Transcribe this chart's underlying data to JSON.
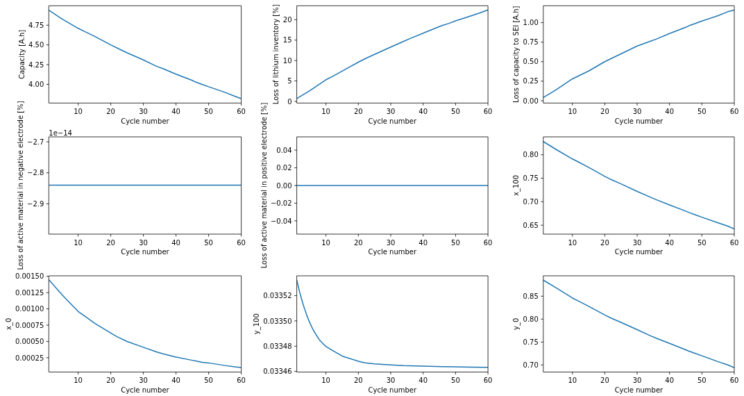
{
  "chart_data": [
    {
      "type": "line",
      "xlabel": "Cycle number",
      "ylabel": "Capacity [A.h]",
      "color": "#1f77b4",
      "x": [
        1,
        5,
        10,
        12,
        15,
        20,
        22,
        25,
        30,
        34,
        36,
        40,
        45,
        46,
        48,
        50,
        55,
        58,
        60
      ],
      "values": [
        4.94,
        4.83,
        4.71,
        4.67,
        4.61,
        4.5,
        4.46,
        4.4,
        4.31,
        4.23,
        4.2,
        4.13,
        4.05,
        4.03,
        4.0,
        3.97,
        3.9,
        3.85,
        3.82
      ],
      "xlim": [
        1,
        60
      ],
      "xticks": [
        10,
        20,
        30,
        40,
        50,
        60
      ],
      "ylim": [
        3.764,
        4.996
      ],
      "yticks": [
        {
          "value": 4.0,
          "label": "4.00"
        },
        {
          "value": 4.25,
          "label": "4.25"
        },
        {
          "value": 4.5,
          "label": "4.50"
        },
        {
          "value": 4.75,
          "label": "4.75"
        }
      ]
    },
    {
      "type": "line",
      "xlabel": "Cycle number",
      "ylabel": "Loss of lithium inventory [%]",
      "color": "#1f77b4",
      "x": [
        1,
        5,
        10,
        12,
        15,
        20,
        22,
        25,
        30,
        34,
        36,
        40,
        45,
        46,
        48,
        50,
        55,
        58,
        60
      ],
      "values": [
        0.7,
        2.6,
        5.3,
        6.1,
        7.4,
        9.6,
        10.4,
        11.5,
        13.3,
        14.7,
        15.4,
        16.7,
        18.3,
        18.6,
        19.1,
        19.7,
        21.0,
        21.8,
        22.4
      ],
      "xlim": [
        1,
        60
      ],
      "xticks": [
        10,
        20,
        30,
        40,
        50,
        60
      ],
      "ylim": [
        -0.4,
        23.4
      ],
      "yticks": [
        0,
        5,
        10,
        15,
        20
      ]
    },
    {
      "type": "line",
      "xlabel": "Cycle number",
      "ylabel": "Loss of capacity to SEI [A.h]",
      "color": "#1f77b4",
      "x": [
        1,
        5,
        10,
        12,
        15,
        20,
        22,
        25,
        30,
        34,
        36,
        40,
        45,
        46,
        48,
        50,
        55,
        58,
        60
      ],
      "values": [
        0.04,
        0.14,
        0.28,
        0.32,
        0.38,
        0.5,
        0.54,
        0.6,
        0.7,
        0.76,
        0.79,
        0.86,
        0.94,
        0.96,
        0.99,
        1.02,
        1.09,
        1.14,
        1.16
      ],
      "xlim": [
        1,
        60
      ],
      "xticks": [
        10,
        20,
        30,
        40,
        50,
        60
      ],
      "ylim": [
        -0.03,
        1.216
      ],
      "yticks": [
        {
          "value": 0,
          "label": "0.00"
        },
        {
          "value": 0.25,
          "label": "0.25"
        },
        {
          "value": 0.5,
          "label": "0.50"
        },
        {
          "value": 0.75,
          "label": "0.75"
        },
        {
          "value": 1.0,
          "label": "1.00"
        }
      ]
    },
    {
      "type": "line",
      "xlabel": "Cycle number",
      "ylabel": "Loss of active material in negative electrode [%]",
      "color": "#1f77b4",
      "x": [
        1,
        60
      ],
      "values": [
        -2.84,
        -2.84
      ],
      "xlim": [
        1,
        60
      ],
      "xticks": [
        10,
        20,
        30,
        40,
        50,
        60
      ],
      "ylim": [
        -2.998,
        -2.684
      ],
      "yticks": [
        {
          "value": -2.9,
          "label": "−2.9"
        },
        {
          "value": -2.8,
          "label": "−2.8"
        },
        {
          "value": -2.7,
          "label": "−2.7"
        }
      ],
      "annotations": [
        "1e−14"
      ]
    },
    {
      "type": "line",
      "xlabel": "Cycle number",
      "ylabel": "Loss of active material in positive electrode [%]",
      "color": "#1f77b4",
      "x": [
        1,
        60
      ],
      "values": [
        0,
        0
      ],
      "xlim": [
        1,
        60
      ],
      "xticks": [
        10,
        20,
        30,
        40,
        50,
        60
      ],
      "ylim": [
        -0.055,
        0.055
      ],
      "yticks": [
        {
          "value": -0.04,
          "label": "−0.04"
        },
        {
          "value": -0.02,
          "label": "−0.02"
        },
        {
          "value": 0,
          "label": "0.00"
        },
        {
          "value": 0.02,
          "label": "0.02"
        },
        {
          "value": 0.04,
          "label": "0.04"
        }
      ]
    },
    {
      "type": "line",
      "xlabel": "Cycle number",
      "ylabel": "x_100",
      "color": "#1f77b4",
      "x": [
        1,
        5,
        10,
        12,
        15,
        20,
        22,
        25,
        30,
        34,
        36,
        40,
        45,
        46,
        48,
        50,
        55,
        58,
        60
      ],
      "values": [
        0.828,
        0.811,
        0.791,
        0.784,
        0.773,
        0.754,
        0.747,
        0.738,
        0.722,
        0.71,
        0.704,
        0.693,
        0.68,
        0.677,
        0.672,
        0.667,
        0.655,
        0.648,
        0.642
      ],
      "xlim": [
        1,
        60
      ],
      "xticks": [
        10,
        20,
        30,
        40,
        50,
        60
      ],
      "ylim": [
        0.631,
        0.838
      ],
      "yticks": [
        {
          "value": 0.65,
          "label": "0.65"
        },
        {
          "value": 0.7,
          "label": "0.70"
        },
        {
          "value": 0.75,
          "label": "0.75"
        },
        {
          "value": 0.8,
          "label": "0.80"
        }
      ]
    },
    {
      "type": "line",
      "xlabel": "Cycle number",
      "ylabel": "x_0",
      "color": "#1f77b4",
      "x": [
        1,
        5,
        10,
        12,
        15,
        20,
        22,
        25,
        30,
        34,
        36,
        40,
        45,
        46,
        48,
        50,
        55,
        58,
        60
      ],
      "values": [
        0.00145,
        0.00122,
        0.00096,
        0.00089,
        0.00078,
        0.00063,
        0.00057,
        0.0005,
        0.00041,
        0.00034,
        0.00031,
        0.00026,
        0.00021,
        0.0002,
        0.00018,
        0.00017,
        0.00013,
        0.00011,
        0.0001
      ],
      "xlim": [
        1,
        60
      ],
      "xticks": [
        10,
        20,
        30,
        40,
        50,
        60
      ],
      "ylim": [
        3e-05,
        0.001508
      ],
      "yticks": [
        {
          "value": 0.00025,
          "label": "0.00025"
        },
        {
          "value": 0.0005,
          "label": "0.00050"
        },
        {
          "value": 0.00075,
          "label": "0.00075"
        },
        {
          "value": 0.001,
          "label": "0.00100"
        },
        {
          "value": 0.00125,
          "label": "0.00125"
        },
        {
          "value": 0.0015,
          "label": "0.00150"
        }
      ]
    },
    {
      "type": "line",
      "xlabel": "Cycle number",
      "ylabel": "y_100",
      "color": "#1f77b4",
      "x": [
        1,
        2,
        3,
        4,
        5,
        6,
        7,
        8,
        9,
        10,
        12,
        15,
        20,
        22,
        25,
        30,
        34,
        40,
        46,
        50,
        55,
        60
      ],
      "values": [
        0.0335323,
        0.0335217,
        0.0335127,
        0.0335051,
        0.0334986,
        0.0334932,
        0.0334888,
        0.033485,
        0.0334822,
        0.0334798,
        0.0334766,
        0.0334722,
        0.033468,
        0.0334668,
        0.033466,
        0.0334651,
        0.0334646,
        0.0334642,
        0.0334638,
        0.0334636,
        0.0334634,
        0.0334632
      ],
      "xlim": [
        1,
        60
      ],
      "xticks": [
        10,
        20,
        30,
        40,
        50,
        60
      ],
      "ylim": [
        0.0334595,
        0.0335357
      ],
      "yticks": [
        {
          "value": 0.03346,
          "label": "0.03346"
        },
        {
          "value": 0.03348,
          "label": "0.03348"
        },
        {
          "value": 0.0335,
          "label": "0.03350"
        },
        {
          "value": 0.03352,
          "label": "0.03352"
        }
      ]
    },
    {
      "type": "line",
      "xlabel": "Cycle number",
      "ylabel": "y_0",
      "color": "#1f77b4",
      "x": [
        1,
        5,
        10,
        12,
        15,
        20,
        22,
        25,
        30,
        34,
        36,
        40,
        45,
        46,
        48,
        50,
        55,
        58,
        60
      ],
      "values": [
        0.885,
        0.868,
        0.846,
        0.839,
        0.828,
        0.809,
        0.802,
        0.793,
        0.777,
        0.764,
        0.758,
        0.747,
        0.733,
        0.73,
        0.725,
        0.72,
        0.707,
        0.7,
        0.694
      ],
      "xlim": [
        1,
        60
      ],
      "xticks": [
        10,
        20,
        30,
        40,
        50,
        60
      ],
      "ylim": [
        0.6845,
        0.8945
      ],
      "yticks": [
        {
          "value": 0.7,
          "label": "0.70"
        },
        {
          "value": 0.75,
          "label": "0.75"
        },
        {
          "value": 0.8,
          "label": "0.80"
        },
        {
          "value": 0.85,
          "label": "0.85"
        }
      ]
    }
  ]
}
